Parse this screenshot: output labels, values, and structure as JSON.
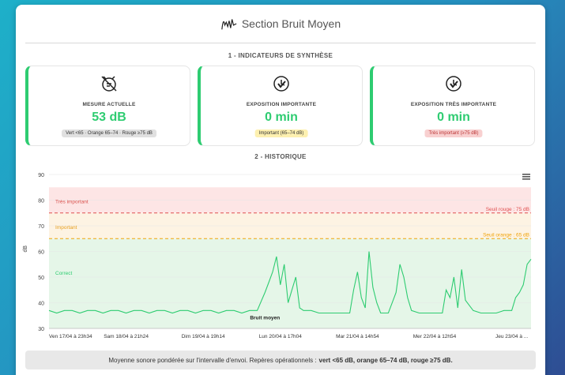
{
  "header": {
    "title": "Section Bruit Moyen",
    "icon": "waveform-icon"
  },
  "section1": {
    "title": "1 - INDICATEURS DE SYNTHÈSE"
  },
  "indicators": [
    {
      "label": "MESURE ACTUELLE",
      "value": "53 dB",
      "badge": "Vert <65 · Orange 65–74 · Rouge ≥75 dB",
      "icon": "sound-meter-icon"
    },
    {
      "label": "EXPOSITION IMPORTANTE",
      "value": "0 min",
      "badge": "Important (65–74 dB)",
      "icon": "timer-icon"
    },
    {
      "label": "EXPOSITION TRÈS IMPORTANTE",
      "value": "0 min",
      "badge": "Très important (≥75 dB)",
      "icon": "timer-icon"
    }
  ],
  "section2": {
    "title": "2 - HISTORIQUE"
  },
  "colors": {
    "accent": "#2ecc71",
    "orange": "#f0a30a",
    "red": "#e05050"
  },
  "chart_data": {
    "type": "line",
    "ylabel": "dB",
    "ylim": [
      30,
      90
    ],
    "yticks": [
      30,
      40,
      50,
      60,
      70,
      80,
      90
    ],
    "xlim": [
      0,
      6.25
    ],
    "xticks": [
      {
        "x": 0,
        "label": "Ven 17/04 à 23h34"
      },
      {
        "x": 1,
        "label": "Sam 18/04 à 21h24"
      },
      {
        "x": 2,
        "label": "Dim 19/04 à 19h14"
      },
      {
        "x": 3,
        "label": "Lun 20/04 à 17h04"
      },
      {
        "x": 4,
        "label": "Mar 21/04 à 14h54"
      },
      {
        "x": 5,
        "label": "Mer 22/04 à 12h54"
      },
      {
        "x": 6,
        "label": "Jeu 23/04 à ..."
      }
    ],
    "bands": [
      {
        "label": "Très important",
        "from": 75,
        "to": 85,
        "color": "#fde5e5",
        "text_color": "#d9534f"
      },
      {
        "label": "Important",
        "from": 65,
        "to": 75,
        "color": "#fdf3e3",
        "text_color": "#e8a020"
      },
      {
        "label": "Correct",
        "from": 30,
        "to": 65,
        "color": "#e5f6e8",
        "text_color": "#2ecc71"
      }
    ],
    "thresholds": [
      {
        "label": "Seuil rouge : 75 dB",
        "y": 75,
        "color": "#e05050"
      },
      {
        "label": "Seuil orange : 65 dB",
        "y": 65,
        "color": "#f0a30a"
      }
    ],
    "series": [
      {
        "name": "Bruit moyen",
        "color": "#2ecc71",
        "x": [
          0,
          0.1,
          0.2,
          0.3,
          0.4,
          0.5,
          0.6,
          0.7,
          0.8,
          0.9,
          1.0,
          1.1,
          1.2,
          1.3,
          1.4,
          1.5,
          1.6,
          1.7,
          1.8,
          1.9,
          2.0,
          2.1,
          2.2,
          2.3,
          2.4,
          2.5,
          2.6,
          2.7,
          2.8,
          2.85,
          2.9,
          2.95,
          3.0,
          3.05,
          3.1,
          3.15,
          3.2,
          3.25,
          3.3,
          3.4,
          3.5,
          3.6,
          3.7,
          3.8,
          3.9,
          3.95,
          4.0,
          4.05,
          4.1,
          4.15,
          4.2,
          4.25,
          4.3,
          4.4,
          4.5,
          4.55,
          4.6,
          4.65,
          4.7,
          4.8,
          4.9,
          5.0,
          5.1,
          5.15,
          5.2,
          5.25,
          5.3,
          5.35,
          5.4,
          5.5,
          5.6,
          5.7,
          5.8,
          5.9,
          6.0,
          6.05,
          6.1,
          6.15,
          6.2,
          6.25
        ],
        "y": [
          37,
          36,
          37,
          37,
          36,
          37,
          37,
          36,
          37,
          37,
          36,
          37,
          37,
          36,
          37,
          37,
          36,
          37,
          37,
          36,
          37,
          37,
          36,
          37,
          37,
          36,
          37,
          37,
          44,
          48,
          52,
          58,
          47,
          55,
          40,
          45,
          50,
          38,
          37,
          37,
          36,
          36,
          36,
          36,
          36,
          45,
          52,
          42,
          38,
          60,
          46,
          40,
          36,
          36,
          44,
          55,
          50,
          42,
          37,
          36,
          36,
          36,
          36,
          45,
          42,
          50,
          38,
          53,
          41,
          37,
          36,
          36,
          36,
          37,
          37,
          42,
          44,
          47,
          55,
          57
        ]
      }
    ]
  },
  "footer": {
    "text": "Moyenne sonore pondérée sur l'intervalle d'envoi. Repères opérationnels :",
    "bold": "vert <65 dB, orange 65–74 dB, rouge ≥75 dB."
  },
  "menu": {
    "icon": "hamburger-menu-icon"
  }
}
